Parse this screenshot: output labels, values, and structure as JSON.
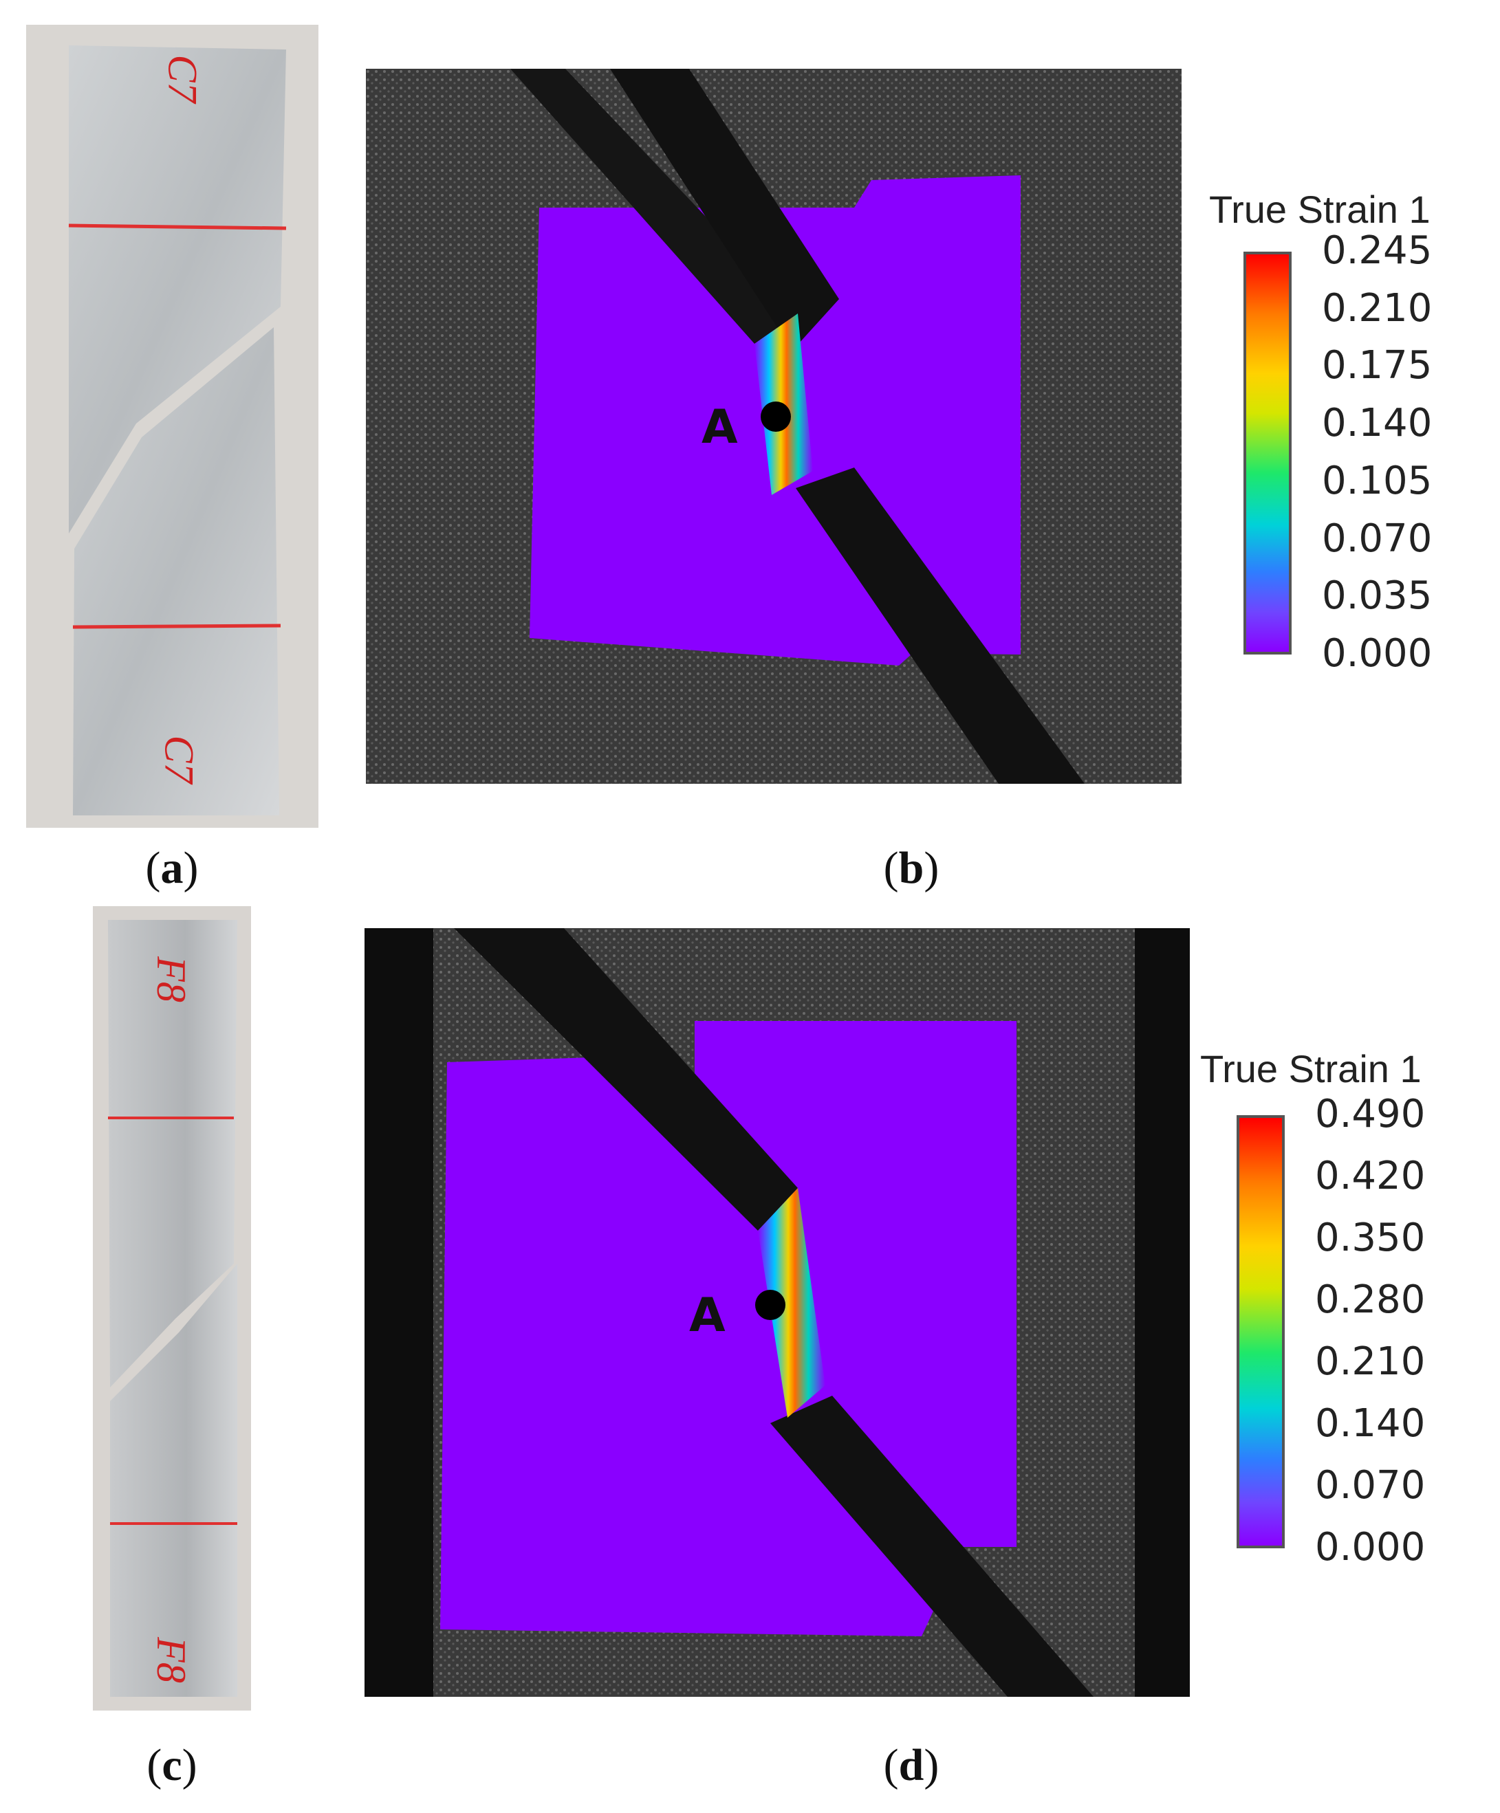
{
  "captions": {
    "a": {
      "open": "(",
      "letter": "a",
      "close": ")"
    },
    "b": {
      "open": "(",
      "letter": "b",
      "close": ")"
    },
    "c": {
      "open": "(",
      "letter": "c",
      "close": ")"
    },
    "d": {
      "open": "(",
      "letter": "d",
      "close": ")"
    }
  },
  "specimen_c7": {
    "label_top": "C7",
    "label_bottom": "C7"
  },
  "specimen_f8": {
    "label_top": "F8",
    "label_bottom": "F8"
  },
  "legend_b": {
    "title": "True Strain 1",
    "ticks": [
      "0.245",
      "0.210",
      "0.175",
      "0.140",
      "0.105",
      "0.070",
      "0.035",
      "0.000"
    ]
  },
  "legend_d": {
    "title": "True Strain 1",
    "ticks": [
      "0.490",
      "0.420",
      "0.350",
      "0.280",
      "0.210",
      "0.140",
      "0.070",
      "0.000"
    ]
  },
  "points": {
    "b": "A",
    "d": "A"
  },
  "colors": {
    "strain_zero": "#8a00ff",
    "speckle_bg": "#3c3c3c",
    "grip": "#111111",
    "aluminum": "#c8cacc",
    "marker_line": "#e03030"
  }
}
